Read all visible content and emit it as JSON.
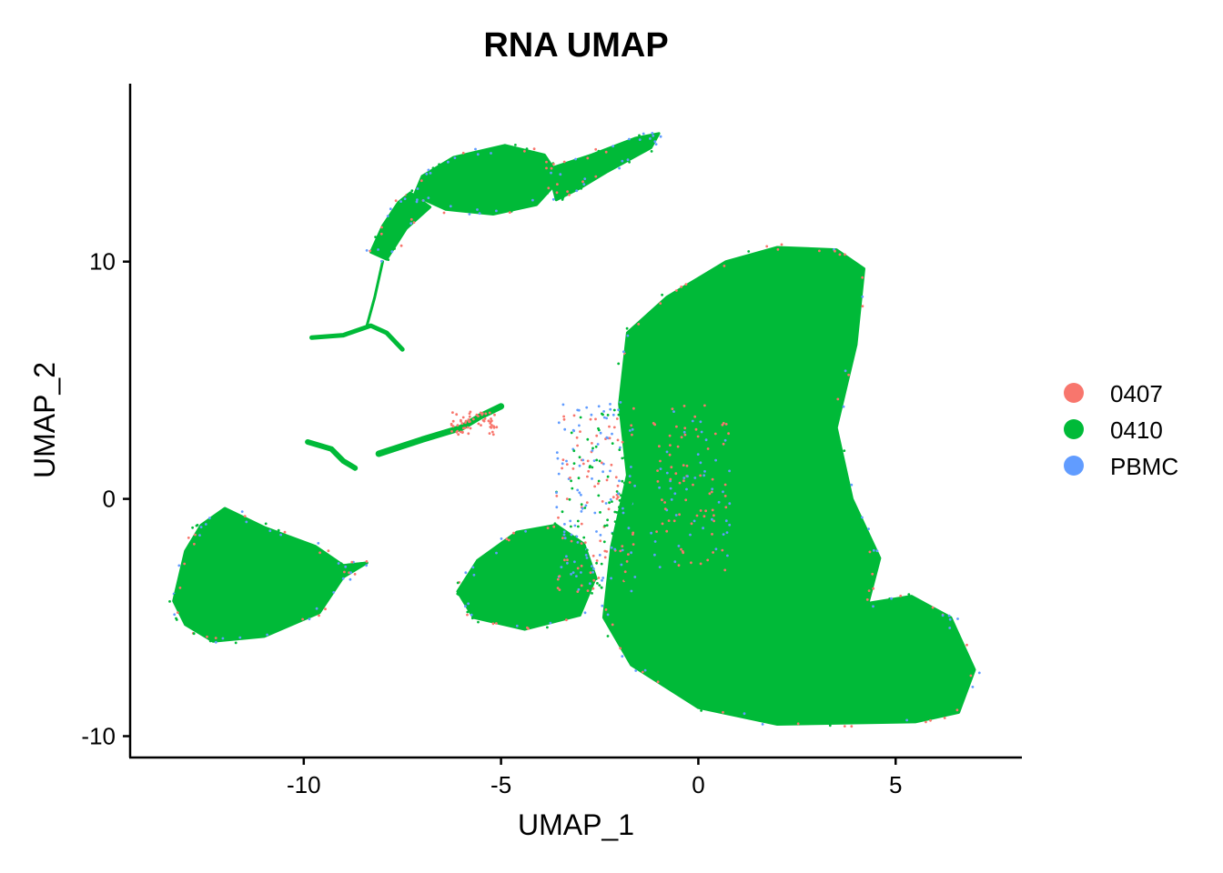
{
  "chart_data": {
    "type": "scatter",
    "title": "RNA UMAP",
    "xlabel": "UMAP_1",
    "ylabel": "UMAP_2",
    "xlim": [
      -14.4,
      8.2
    ],
    "ylim": [
      -10.9,
      17.5
    ],
    "x_ticks": [
      -10,
      -5,
      0,
      5
    ],
    "y_ticks": [
      -10,
      0,
      10
    ],
    "grid": false,
    "legend_position": "right",
    "series": [
      {
        "name": "0407",
        "color": "#F8766D"
      },
      {
        "name": "0410",
        "color": "#00BA38"
      },
      {
        "name": "PBMC",
        "color": "#619CFF"
      }
    ],
    "clusters": [
      {
        "label": "main cluster",
        "x": 2.5,
        "y": -1.0,
        "x_range": [
          -2.4,
          7.0
        ],
        "y_range": [
          -9.5,
          10.8
        ]
      },
      {
        "label": "lower-right lobe",
        "x": 5.6,
        "y": -7.0,
        "x_range": [
          3.9,
          7.0
        ],
        "y_range": [
          -9.5,
          -4.2
        ]
      },
      {
        "label": "left cluster",
        "x": -11.5,
        "y": -3.6,
        "x_range": [
          -13.2,
          -8.4
        ],
        "y_range": [
          -6.0,
          -0.2
        ]
      },
      {
        "label": "lower-middle cluster",
        "x": -4.1,
        "y": -3.8,
        "x_range": [
          -6.0,
          -2.8
        ],
        "y_range": [
          -5.5,
          -1.1
        ]
      },
      {
        "label": "top cluster",
        "x": -5.2,
        "y": 13.4,
        "x_range": [
          -7.5,
          -3.7
        ],
        "y_range": [
          12.0,
          14.9
        ]
      },
      {
        "label": "top-right arm",
        "x": -2.0,
        "y": 14.6,
        "x_range": [
          -3.5,
          -1.0
        ],
        "y_range": [
          13.8,
          15.5
        ]
      },
      {
        "label": "upper-left arm",
        "x": -7.7,
        "y": 11.7,
        "x_range": [
          -8.3,
          -7.2
        ],
        "y_range": [
          10.0,
          13.0
        ]
      },
      {
        "label": "middle strand",
        "x": -5.8,
        "y": 2.9,
        "x_range": [
          -8.1,
          -5.0
        ],
        "y_range": [
          1.8,
          4.1
        ]
      },
      {
        "label": "small left strand",
        "x": -9.1,
        "y": 2.0,
        "x_range": [
          -9.9,
          -8.5
        ],
        "y_range": [
          1.0,
          2.5
        ]
      },
      {
        "label": "upper small strand",
        "x": -8.8,
        "y": 6.8,
        "x_range": [
          -9.8,
          -7.7
        ],
        "y_range": [
          6.2,
          7.6
        ]
      },
      {
        "label": "scattered mixed cells",
        "x": -2.6,
        "y": 0.5,
        "x_range": [
          -3.6,
          -1.6
        ],
        "y_range": [
          -3.5,
          3.7
        ]
      }
    ]
  }
}
